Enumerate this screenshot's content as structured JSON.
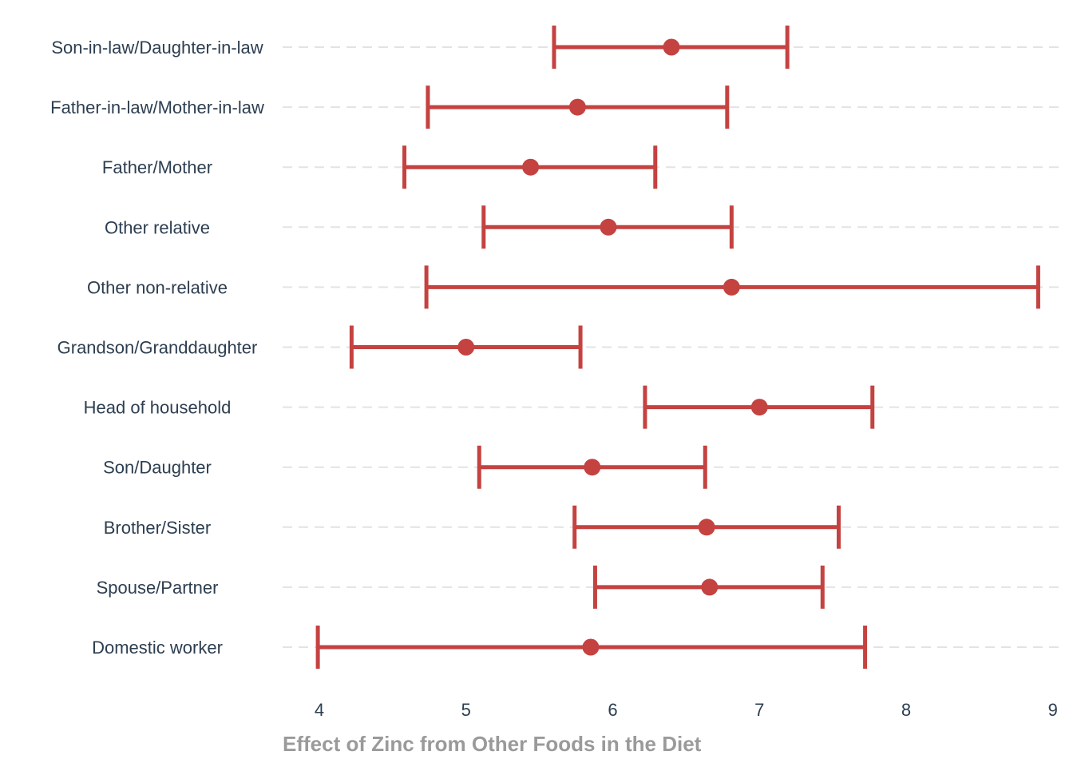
{
  "chart_data": {
    "type": "errorbar",
    "xlabel": "Effect of Zinc from Other Foods in the Diet",
    "ylabel": "",
    "xlim": [
      3.75,
      9.05
    ],
    "xticks": [
      4,
      5,
      6,
      7,
      8,
      9
    ],
    "grid": "horizontal-dashed",
    "legend": "none",
    "colors": {
      "series": "#c44240",
      "labels": "#2d3e50",
      "axis_title": "#9a9a9a",
      "grid": "#e3e3e3"
    },
    "categories": [
      "Son-in-law/Daughter-in-law",
      "Father-in-law/Mother-in-law",
      "Father/Mother",
      "Other relative",
      "Other non-relative",
      "Grandson/Granddaughter",
      "Head of household",
      "Son/Daughter",
      "Brother/Sister",
      "Spouse/Partner",
      "Domestic worker"
    ],
    "estimate": [
      6.4,
      5.76,
      5.44,
      5.97,
      6.81,
      5.0,
      7.0,
      5.86,
      6.64,
      6.66,
      5.85
    ],
    "lower": [
      5.6,
      4.74,
      4.58,
      5.12,
      4.73,
      4.22,
      6.22,
      5.09,
      5.74,
      5.88,
      3.99
    ],
    "upper": [
      7.19,
      6.78,
      6.29,
      6.81,
      8.9,
      5.78,
      7.77,
      6.63,
      7.54,
      7.43,
      7.72
    ]
  }
}
